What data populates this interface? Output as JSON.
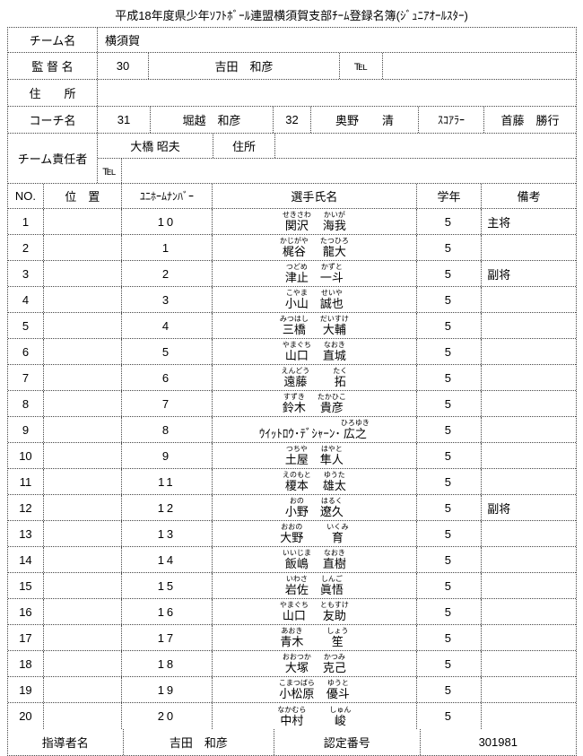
{
  "title": "平成18年度県少年ｿﾌﾄﾎﾞｰﾙ連盟横須賀支部ﾁｰﾑ登録名簿(ｼﾞｭﾆｱｵｰﾙｽﾀｰ)",
  "info": {
    "team_label": "チーム名",
    "team_name": "横須賀",
    "manager_label": "監 督 名",
    "manager_no": "30",
    "manager_name": "吉田　和彦",
    "manager_tel_label": "℡",
    "manager_tel": "",
    "address_label": "住　　所",
    "address": "",
    "coach_label": "コーチ名",
    "coach1_no": "31",
    "coach1_name": "堀越　和彦",
    "coach2_no": "32",
    "coach2_name": "奥野　　清",
    "scorer_label": "ｽｺｱﾗｰ",
    "scorer_name": "首藤　勝行",
    "rep_label": "チーム責任者",
    "rep_name": "大橋 昭夫",
    "rep_addr_label": "住所",
    "rep_address": "",
    "rep_tel_label": "℡",
    "rep_tel": ""
  },
  "table_headers": {
    "no": "NO.",
    "position": "位　置",
    "uniform": "ﾕﾆﾎｰﾑﾅﾝﾊﾞｰ",
    "name": "選手氏名",
    "grade": "学年",
    "note": "備考"
  },
  "players": [
    {
      "no": "1",
      "position": "",
      "uniform": "10",
      "grade": "5",
      "note": "主将",
      "parts": [
        {
          "t": "関沢",
          "k": "せきさわ"
        },
        {
          "t": "　",
          "k": ""
        },
        {
          "t": "海我",
          "k": "かいが"
        }
      ]
    },
    {
      "no": "2",
      "position": "",
      "uniform": "1",
      "grade": "5",
      "note": "",
      "parts": [
        {
          "t": "梶谷",
          "k": "かじがや"
        },
        {
          "t": "　",
          "k": ""
        },
        {
          "t": "龍大",
          "k": "たつひろ"
        }
      ]
    },
    {
      "no": "3",
      "position": "",
      "uniform": "2",
      "grade": "5",
      "note": "副将",
      "parts": [
        {
          "t": "津止",
          "k": "つどめ"
        },
        {
          "t": "　",
          "k": ""
        },
        {
          "t": "一斗",
          "k": "かずと"
        }
      ]
    },
    {
      "no": "4",
      "position": "",
      "uniform": "3",
      "grade": "5",
      "note": "",
      "parts": [
        {
          "t": "小山",
          "k": "こやま"
        },
        {
          "t": "　",
          "k": ""
        },
        {
          "t": "誠也",
          "k": "せいや"
        }
      ]
    },
    {
      "no": "5",
      "position": "",
      "uniform": "4",
      "grade": "5",
      "note": "",
      "parts": [
        {
          "t": "三橋",
          "k": "みつはし"
        },
        {
          "t": "　",
          "k": ""
        },
        {
          "t": "大輔",
          "k": "だいすけ"
        }
      ]
    },
    {
      "no": "6",
      "position": "",
      "uniform": "5",
      "grade": "5",
      "note": "",
      "parts": [
        {
          "t": "山口",
          "k": "やまぐち"
        },
        {
          "t": "　",
          "k": ""
        },
        {
          "t": "直城",
          "k": "なおき"
        }
      ]
    },
    {
      "no": "7",
      "position": "",
      "uniform": "6",
      "grade": "5",
      "note": "",
      "parts": [
        {
          "t": "遠藤",
          "k": "えんどう"
        },
        {
          "t": "　　",
          "k": ""
        },
        {
          "t": "拓",
          "k": "たく"
        }
      ]
    },
    {
      "no": "8",
      "position": "",
      "uniform": "7",
      "grade": "5",
      "note": "",
      "parts": [
        {
          "t": "鈴木",
          "k": "すずき"
        },
        {
          "t": "　",
          "k": ""
        },
        {
          "t": "貴彦",
          "k": "たかひこ"
        }
      ]
    },
    {
      "no": "9",
      "position": "",
      "uniform": "8",
      "grade": "5",
      "note": "",
      "parts": [
        {
          "t": "ｳｲｯﾄﾛｳ･ﾃﾞｼｬｰﾝ･",
          "k": ""
        },
        {
          "t": "広之",
          "k": "ひろゆき"
        }
      ]
    },
    {
      "no": "10",
      "position": "",
      "uniform": "9",
      "grade": "5",
      "note": "",
      "parts": [
        {
          "t": "土屋",
          "k": "つちや"
        },
        {
          "t": "　",
          "k": ""
        },
        {
          "t": "隼人",
          "k": "はやと"
        }
      ]
    },
    {
      "no": "11",
      "position": "",
      "uniform": "11",
      "grade": "5",
      "note": "",
      "parts": [
        {
          "t": "榎本",
          "k": "えのもと"
        },
        {
          "t": "　",
          "k": ""
        },
        {
          "t": "雄太",
          "k": "ゆうた"
        }
      ]
    },
    {
      "no": "12",
      "position": "",
      "uniform": "12",
      "grade": "5",
      "note": "副将",
      "parts": [
        {
          "t": "小野",
          "k": "おの"
        },
        {
          "t": "　",
          "k": ""
        },
        {
          "t": "遼久",
          "k": "はるく"
        }
      ]
    },
    {
      "no": "13",
      "position": "",
      "uniform": "13",
      "grade": "5",
      "note": "",
      "parts": [
        {
          "t": "大野",
          "k": "おおの"
        },
        {
          "t": "　　",
          "k": ""
        },
        {
          "t": "育",
          "k": "いくみ"
        }
      ]
    },
    {
      "no": "14",
      "position": "",
      "uniform": "14",
      "grade": "5",
      "note": "",
      "parts": [
        {
          "t": "飯嶋",
          "k": "いいじま"
        },
        {
          "t": "　",
          "k": ""
        },
        {
          "t": "直樹",
          "k": "なおき"
        }
      ]
    },
    {
      "no": "15",
      "position": "",
      "uniform": "15",
      "grade": "5",
      "note": "",
      "parts": [
        {
          "t": "岩佐",
          "k": "いわさ"
        },
        {
          "t": "　",
          "k": ""
        },
        {
          "t": "眞悟",
          "k": "しんご"
        }
      ]
    },
    {
      "no": "16",
      "position": "",
      "uniform": "16",
      "grade": "5",
      "note": "",
      "parts": [
        {
          "t": "山口",
          "k": "やまぐち"
        },
        {
          "t": "　",
          "k": ""
        },
        {
          "t": "友助",
          "k": "ともすけ"
        }
      ]
    },
    {
      "no": "17",
      "position": "",
      "uniform": "17",
      "grade": "5",
      "note": "",
      "parts": [
        {
          "t": "青木",
          "k": "あおき"
        },
        {
          "t": "　　",
          "k": ""
        },
        {
          "t": "笙",
          "k": "しょう"
        }
      ]
    },
    {
      "no": "18",
      "position": "",
      "uniform": "18",
      "grade": "5",
      "note": "",
      "parts": [
        {
          "t": "大塚",
          "k": "おおつか"
        },
        {
          "t": "　",
          "k": ""
        },
        {
          "t": "克己",
          "k": "かつみ"
        }
      ]
    },
    {
      "no": "19",
      "position": "",
      "uniform": "19",
      "grade": "5",
      "note": "",
      "parts": [
        {
          "t": "小松原",
          "k": "こまつばら"
        },
        {
          "t": "　",
          "k": ""
        },
        {
          "t": "優斗",
          "k": "ゆうと"
        }
      ]
    },
    {
      "no": "20",
      "position": "",
      "uniform": "20",
      "grade": "5",
      "note": "",
      "parts": [
        {
          "t": "中村",
          "k": "なかむら"
        },
        {
          "t": "　　",
          "k": ""
        },
        {
          "t": "峻",
          "k": "しゅん"
        }
      ]
    }
  ],
  "footer": {
    "leader_label": "指導者名",
    "leader_name": "吉田　和彦",
    "cert_label": "認定番号",
    "cert_no": "301981"
  }
}
